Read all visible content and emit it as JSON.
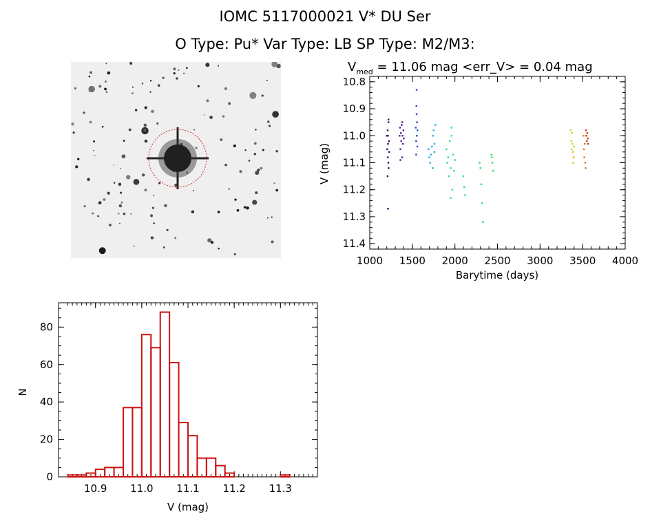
{
  "header": {
    "title_line1": "IOMC 5117000021     V* DU Ser",
    "title_line2": "O Type: Pu*  Var Type: LB  SP Type: M2/M3:"
  },
  "image_panel": {
    "type": "finding-chart",
    "marker_color": "#dd2222"
  },
  "chart_data": [
    {
      "type": "scatter",
      "title": "V_med = 11.06 mag <err_V> = 0.04 mag",
      "title_main": "V",
      "title_sub": "med",
      "title_rest": " = 11.06 mag <err_V> = 0.04 mag",
      "xlabel": "Barytime (days)",
      "ylabel": "V (mag)",
      "xlim": [
        1000,
        4000
      ],
      "ylim": [
        11.42,
        10.78
      ],
      "y_inverted": true,
      "xticks": [
        "1000",
        "1500",
        "2000",
        "2500",
        "3000",
        "3500",
        "4000"
      ],
      "yticks": [
        "10.8",
        "10.9",
        "11.0",
        "11.1",
        "11.2",
        "11.3",
        "11.4"
      ],
      "series": [
        {
          "color": "#3a0070",
          "x": [
            1200,
            1205,
            1210,
            1212,
            1215,
            1218,
            1220,
            1222,
            1225,
            1228,
            1215,
            1210,
            1220,
            1213
          ],
          "y": [
            11.0,
            11.05,
            10.98,
            11.08,
            11.03,
            11.1,
            10.94,
            11.12,
            11.02,
            11.06,
            11.27,
            11.15,
            10.95,
            11.0
          ]
        },
        {
          "color": "#4a1aa0",
          "x": [
            1350,
            1355,
            1360,
            1365,
            1370,
            1375,
            1380,
            1385,
            1390,
            1395,
            1400,
            1360,
            1380
          ],
          "y": [
            11.0,
            10.97,
            11.05,
            10.99,
            11.02,
            10.96,
            11.08,
            11.0,
            11.03,
            10.98,
            11.01,
            11.09,
            10.95
          ]
        },
        {
          "color": "#2244cc",
          "x": [
            1540,
            1545,
            1548,
            1550,
            1552,
            1555,
            1558,
            1560,
            1550,
            1545
          ],
          "y": [
            10.97,
            11.02,
            10.89,
            10.92,
            11.0,
            10.95,
            11.04,
            10.98,
            10.83,
            11.07
          ]
        },
        {
          "color": "#22aadd",
          "x": [
            1690,
            1700,
            1710,
            1720,
            1730,
            1740,
            1750,
            1760,
            1770,
            1740,
            1760
          ],
          "y": [
            11.05,
            11.08,
            11.1,
            11.07,
            11.04,
            11.0,
            10.98,
            11.03,
            10.96,
            11.12,
            11.06
          ]
        },
        {
          "color": "#22ddaa",
          "x": [
            1900,
            1910,
            1920,
            1930,
            1940,
            1950,
            1960,
            1970,
            1980,
            1990,
            2000,
            1950,
            1960
          ],
          "y": [
            11.05,
            11.1,
            11.08,
            11.15,
            11.02,
            11.12,
            10.97,
            11.2,
            11.07,
            11.13,
            11.09,
            11.23,
            11.0
          ]
        },
        {
          "color": "#33dd66",
          "x": [
            2100,
            2110,
            2120,
            2300,
            2310,
            2320,
            2290,
            2330,
            2430,
            2440,
            2450,
            2435
          ],
          "y": [
            11.15,
            11.19,
            11.22,
            11.12,
            11.18,
            11.25,
            11.1,
            11.32,
            11.07,
            11.1,
            11.13,
            11.08
          ]
        },
        {
          "color": "#aadd22",
          "x": [
            3360,
            3365,
            3370,
            3375,
            3380
          ],
          "y": [
            10.98,
            11.02,
            11.05,
            10.99,
            11.03
          ]
        },
        {
          "color": "#ddbb11",
          "x": [
            3385,
            3390,
            3395,
            3400
          ],
          "y": [
            11.06,
            11.1,
            11.08,
            11.04
          ]
        },
        {
          "color": "#dd7711",
          "x": [
            3510,
            3515,
            3520,
            3525,
            3530,
            3535
          ],
          "y": [
            11.0,
            11.05,
            11.08,
            11.03,
            11.1,
            11.12
          ]
        },
        {
          "color": "#cc3311",
          "x": [
            3540,
            3545,
            3550,
            3555,
            3560,
            3565
          ],
          "y": [
            10.98,
            11.0,
            11.02,
            10.99,
            11.01,
            11.03
          ]
        }
      ]
    },
    {
      "type": "bar",
      "xlabel": "V (mag)",
      "ylabel": "N",
      "xlim": [
        10.82,
        11.38
      ],
      "ylim": [
        0,
        93
      ],
      "xticks": [
        "10.9",
        "11.0",
        "11.1",
        "11.2",
        "11.3"
      ],
      "yticks": [
        "0",
        "20",
        "40",
        "60",
        "80"
      ],
      "bin_width": 0.02,
      "bin_starts": [
        10.84,
        10.86,
        10.88,
        10.9,
        10.92,
        10.94,
        10.96,
        10.98,
        11.0,
        11.02,
        11.04,
        11.06,
        11.08,
        11.1,
        11.12,
        11.14,
        11.16,
        11.18,
        11.2,
        11.22,
        11.24,
        11.26,
        11.28,
        11.3,
        11.32
      ],
      "values": [
        1,
        1,
        2,
        4,
        5,
        5,
        37,
        37,
        76,
        69,
        88,
        61,
        29,
        22,
        10,
        10,
        6,
        2,
        0,
        0,
        0,
        0,
        0,
        1,
        0
      ],
      "color": "#cc1111"
    }
  ]
}
